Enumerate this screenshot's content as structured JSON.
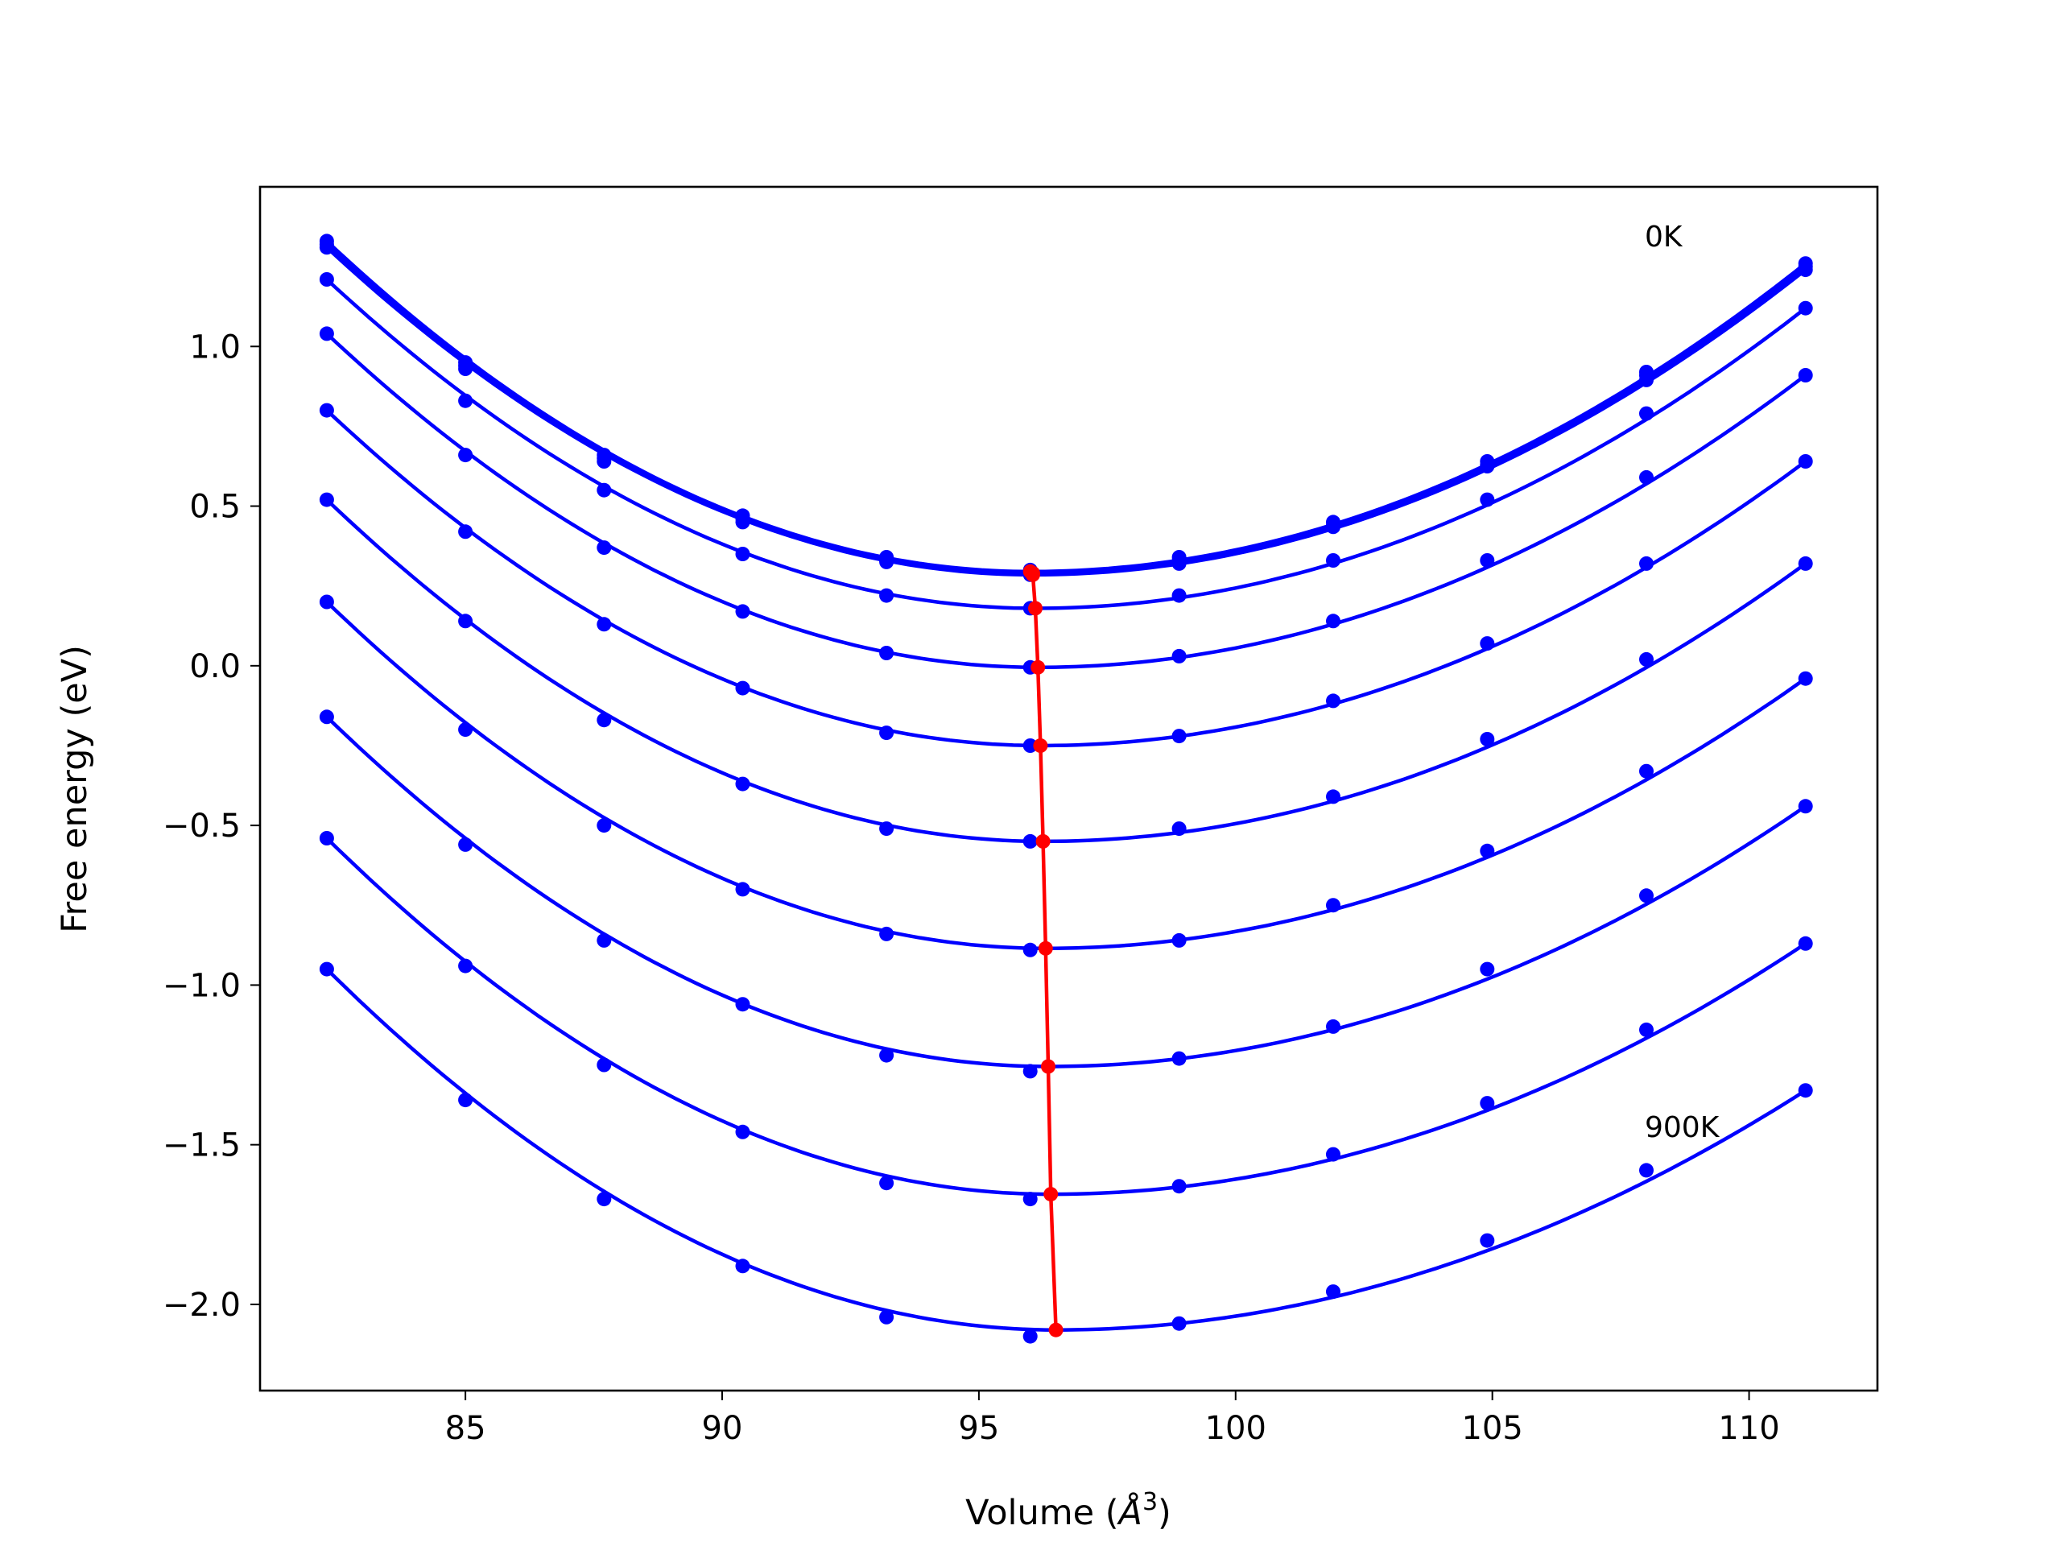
{
  "chart_data": {
    "type": "line",
    "xlabel": "Volume (",
    "xlabel_symbol": "Å",
    "xlabel_exp": "3",
    "xlabel_close": ")",
    "ylabel": "Free energy (eV)",
    "xlim": [
      81.0,
      112.5
    ],
    "ylim": [
      -2.27,
      1.5
    ],
    "xticks": [
      85,
      90,
      95,
      100,
      105,
      110
    ],
    "yticks": [
      1.0,
      0.5,
      0.0,
      -0.5,
      -1.0,
      -1.5,
      -2.0
    ],
    "xtick_labels": [
      "85",
      "90",
      "95",
      "100",
      "105",
      "110"
    ],
    "ytick_labels": [
      "1.0",
      "0.5",
      "0.0",
      "−0.5",
      "−1.0",
      "−1.5",
      "−2.0"
    ],
    "grid": false,
    "annotations": [
      {
        "text": "0K",
        "x": 107.9,
        "y": 1.3
      },
      {
        "text": "900K",
        "x": 107.9,
        "y": -1.5
      }
    ],
    "volumes": [
      82.3,
      85.0,
      87.7,
      90.4,
      93.2,
      96.0,
      98.9,
      101.9,
      104.9,
      108.0,
      111.1
    ],
    "color_series": "#0000ff",
    "color_min_line": "#ff0000",
    "series": [
      {
        "values": [
          1.33,
          0.95,
          0.66,
          0.47,
          0.34,
          0.3,
          0.34,
          0.45,
          0.64,
          0.92,
          1.26
        ],
        "min": [
          96.0,
          0.295
        ]
      },
      {
        "values": [
          1.32,
          0.94,
          0.65,
          0.46,
          0.33,
          0.29,
          0.33,
          0.44,
          0.63,
          0.91,
          1.25
        ],
        "min": [
          96.05,
          0.29
        ]
      },
      {
        "values": [
          1.31,
          0.93,
          0.64,
          0.45,
          0.325,
          0.285,
          0.32,
          0.435,
          0.625,
          0.895,
          1.24
        ],
        "min": [
          96.05,
          0.285
        ]
      },
      {
        "values": [
          1.21,
          0.83,
          0.55,
          0.35,
          0.22,
          0.18,
          0.22,
          0.33,
          0.52,
          0.79,
          1.12
        ],
        "min": [
          96.1,
          0.18
        ]
      },
      {
        "values": [
          1.04,
          0.66,
          0.37,
          0.17,
          0.04,
          -0.005,
          0.03,
          0.14,
          0.33,
          0.59,
          0.91
        ],
        "min": [
          96.15,
          -0.005
        ]
      },
      {
        "values": [
          0.8,
          0.42,
          0.13,
          -0.07,
          -0.21,
          -0.25,
          -0.22,
          -0.11,
          0.07,
          0.32,
          0.64
        ],
        "min": [
          96.2,
          -0.25
        ]
      },
      {
        "values": [
          0.52,
          0.14,
          -0.17,
          -0.37,
          -0.51,
          -0.55,
          -0.51,
          -0.41,
          -0.23,
          0.02,
          0.32
        ],
        "min": [
          96.25,
          -0.55
        ]
      },
      {
        "values": [
          0.2,
          -0.2,
          -0.5,
          -0.7,
          -0.84,
          -0.89,
          -0.86,
          -0.75,
          -0.58,
          -0.33,
          -0.04
        ],
        "min": [
          96.3,
          -0.885
        ]
      },
      {
        "values": [
          -0.16,
          -0.56,
          -0.86,
          -1.06,
          -1.22,
          -1.27,
          -1.23,
          -1.13,
          -0.95,
          -0.72,
          -0.44
        ],
        "min": [
          96.35,
          -1.255
        ]
      },
      {
        "values": [
          -0.54,
          -0.94,
          -1.25,
          -1.46,
          -1.62,
          -1.67,
          -1.63,
          -1.53,
          -1.37,
          -1.14,
          -0.87
        ],
        "min": [
          96.4,
          -1.655
        ]
      },
      {
        "values": [
          -0.95,
          -1.36,
          -1.67,
          -1.88,
          -2.04,
          -2.1,
          -2.06,
          -1.96,
          -1.8,
          -1.58,
          -1.33
        ],
        "min": [
          96.5,
          -2.08
        ]
      }
    ]
  }
}
